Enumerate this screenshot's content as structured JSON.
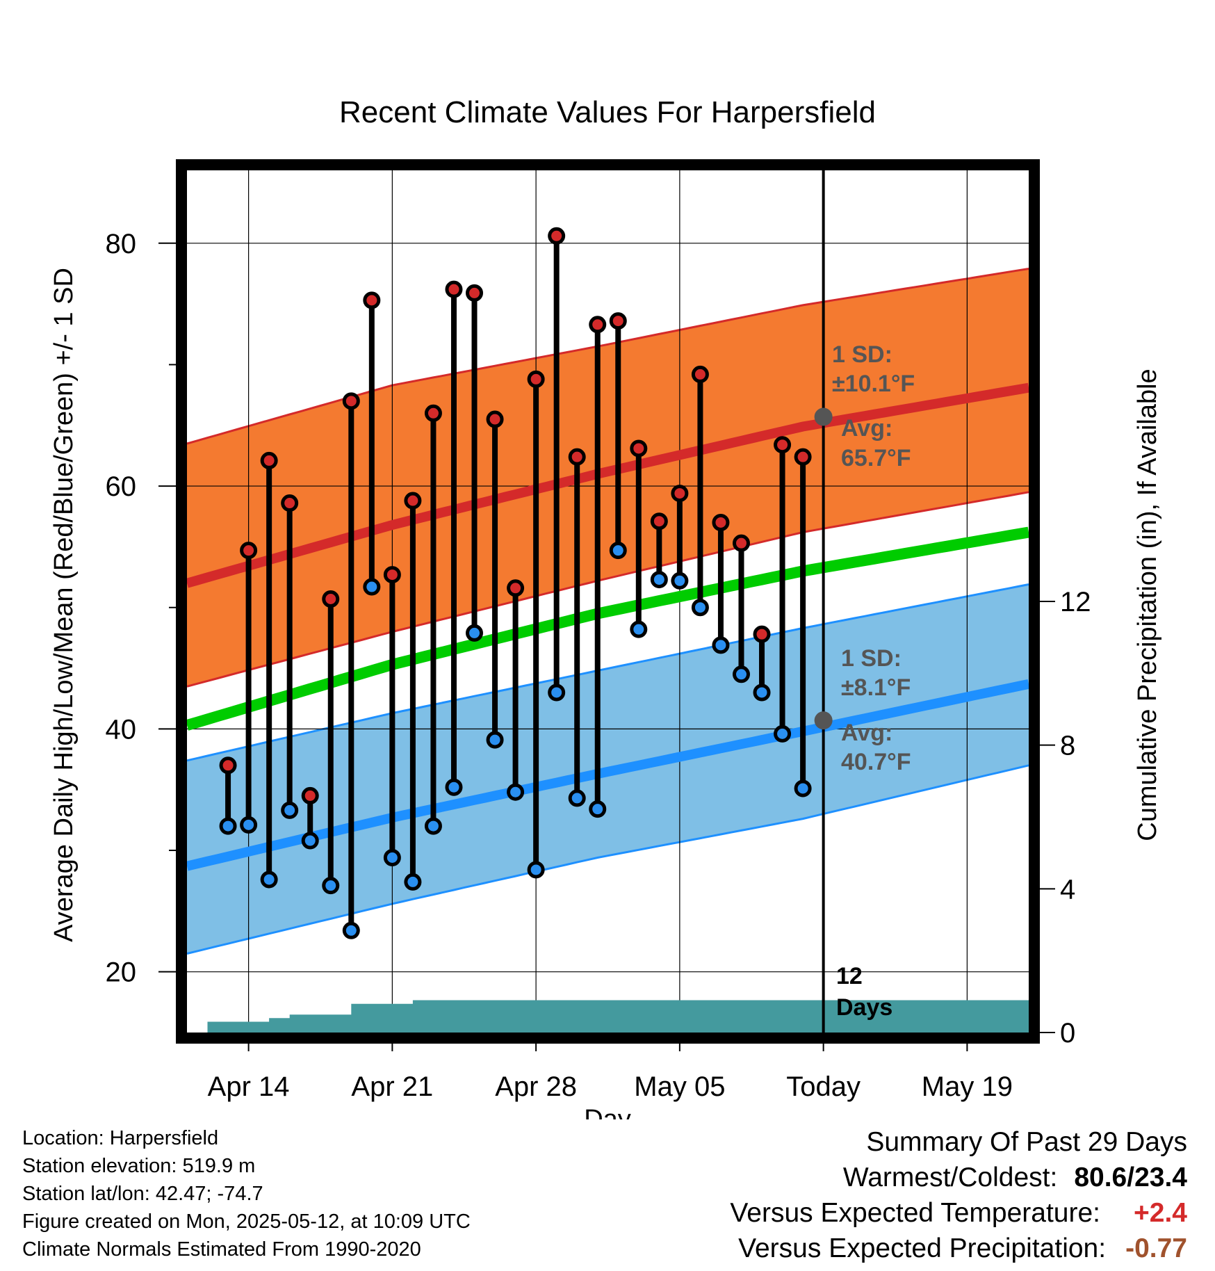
{
  "chart_data": {
    "type": "line",
    "title": "Recent Climate Values For Harpersfield",
    "xlabel": "Day",
    "ylabel": "Average Daily High/Low/Mean (Red/Blue/Green) +/- 1 SD",
    "y2label": "Cumulative Precipitation (in), If Available",
    "x_tick_labels": [
      "Apr 14",
      "Apr 21",
      "Apr 28",
      "May 05",
      "Today",
      "May 19"
    ],
    "x_tick_dates": [
      "2025-04-14",
      "2025-04-21",
      "2025-04-28",
      "2025-05-05",
      "2025-05-12",
      "2025-05-19"
    ],
    "x_range": [
      "2025-04-11",
      "2025-05-22"
    ],
    "today": "2025-05-12",
    "ylim": [
      15,
      86
    ],
    "y_ticks": [
      20,
      40,
      60,
      80
    ],
    "y2lim": [
      0,
      24
    ],
    "y2_ticks": [
      0,
      4,
      8,
      12
    ],
    "grid": true,
    "observed": {
      "dates": [
        "2025-04-13",
        "2025-04-14",
        "2025-04-15",
        "2025-04-16",
        "2025-04-17",
        "2025-04-18",
        "2025-04-19",
        "2025-04-20",
        "2025-04-21",
        "2025-04-22",
        "2025-04-23",
        "2025-04-24",
        "2025-04-25",
        "2025-04-26",
        "2025-04-27",
        "2025-04-28",
        "2025-04-29",
        "2025-04-30",
        "2025-05-01",
        "2025-05-02",
        "2025-05-03",
        "2025-05-04",
        "2025-05-05",
        "2025-05-06",
        "2025-05-07",
        "2025-05-08",
        "2025-05-09",
        "2025-05-10",
        "2025-05-11"
      ],
      "high": [
        37.0,
        54.7,
        62.1,
        58.6,
        34.5,
        50.7,
        67.0,
        75.3,
        52.7,
        58.8,
        66.0,
        76.2,
        75.9,
        65.5,
        51.6,
        68.8,
        80.6,
        62.4,
        73.3,
        73.6,
        63.1,
        57.1,
        59.4,
        69.2,
        57.0,
        55.3,
        47.8,
        63.4,
        62.4
      ],
      "low": [
        32.0,
        32.1,
        27.6,
        33.3,
        30.8,
        27.1,
        23.4,
        51.7,
        29.4,
        27.4,
        32.0,
        35.2,
        47.9,
        39.1,
        34.8,
        28.4,
        43.0,
        34.3,
        33.4,
        54.7,
        48.2,
        52.3,
        52.2,
        50.0,
        46.9,
        44.5,
        43.0,
        39.6,
        35.1
      ]
    },
    "normals": {
      "dates": [
        "2025-04-11",
        "2025-04-21",
        "2025-05-01",
        "2025-05-11",
        "2025-05-22"
      ],
      "high_avg": [
        52.0,
        56.8,
        61.0,
        64.9,
        68.1
      ],
      "high_sd_upper": [
        63.5,
        68.3,
        71.5,
        74.9,
        77.9
      ],
      "high_sd_lower": [
        43.5,
        48.0,
        52.2,
        56.2,
        59.5
      ],
      "mean_avg": [
        40.3,
        45.3,
        49.5,
        53.0,
        56.2
      ],
      "low_avg": [
        28.7,
        32.7,
        36.3,
        39.8,
        43.7
      ],
      "low_sd_upper": [
        37.4,
        41.3,
        44.8,
        48.3,
        51.9
      ],
      "low_sd_lower": [
        21.5,
        25.6,
        29.4,
        32.6,
        37.0
      ]
    },
    "precip": {
      "dates": [
        "2025-04-11",
        "2025-04-12",
        "2025-04-14",
        "2025-04-15",
        "2025-04-16",
        "2025-04-17",
        "2025-04-18",
        "2025-04-19",
        "2025-04-20",
        "2025-04-21",
        "2025-04-22",
        "2025-04-23",
        "2025-04-24",
        "2025-05-12",
        "2025-05-22"
      ],
      "cumulative": [
        0.0,
        0.3,
        0.3,
        0.4,
        0.5,
        0.5,
        0.5,
        0.8,
        0.8,
        0.8,
        0.9,
        0.9,
        0.9,
        0.9,
        0.9
      ]
    },
    "annotations": {
      "high_sd_title": "1 SD:",
      "high_sd": "±10.1°F",
      "high_avg_title": "Avg:",
      "high_avg": "65.7°F",
      "high_avg_value": 65.7,
      "low_sd_title": "1 SD:",
      "low_sd": "±8.1°F",
      "low_avg_title": "Avg:",
      "low_avg": "40.7°F",
      "low_avg_value": 40.7,
      "precip_days_number": "12",
      "precip_days_word": "Days"
    },
    "colors": {
      "high_band": "#f47a30",
      "high_line": "#d42a2a",
      "mean_line": "#00cc00",
      "low_band": "#7fbfe6",
      "low_line": "#1e90ff",
      "precip": "#449a9e",
      "high_marker": "#d42a2a",
      "low_marker": "#2a8ff0",
      "avg_marker": "#555555",
      "annotation_text": "#555555"
    }
  },
  "footer_left": {
    "location": "Location: Harpersfield",
    "elevation": "Station elevation: 519.9 m",
    "latlon": "Station lat/lon: 42.47; -74.7",
    "created": "Figure created on Mon, 2025-05-12, at 10:09 UTC",
    "normals": "Climate Normals Estimated From 1990-2020"
  },
  "footer_right": {
    "summary_title": "Summary Of Past 29 Days",
    "warmest_label": "Warmest/Coldest:",
    "warmest_value": "80.6/23.4",
    "temp_label": "Versus Expected Temperature:",
    "temp_value": "+2.4",
    "temp_color": "#d42a2a",
    "precip_label": "Versus Expected Precipitation:",
    "precip_value": "-0.77",
    "precip_color": "#a0522d"
  }
}
